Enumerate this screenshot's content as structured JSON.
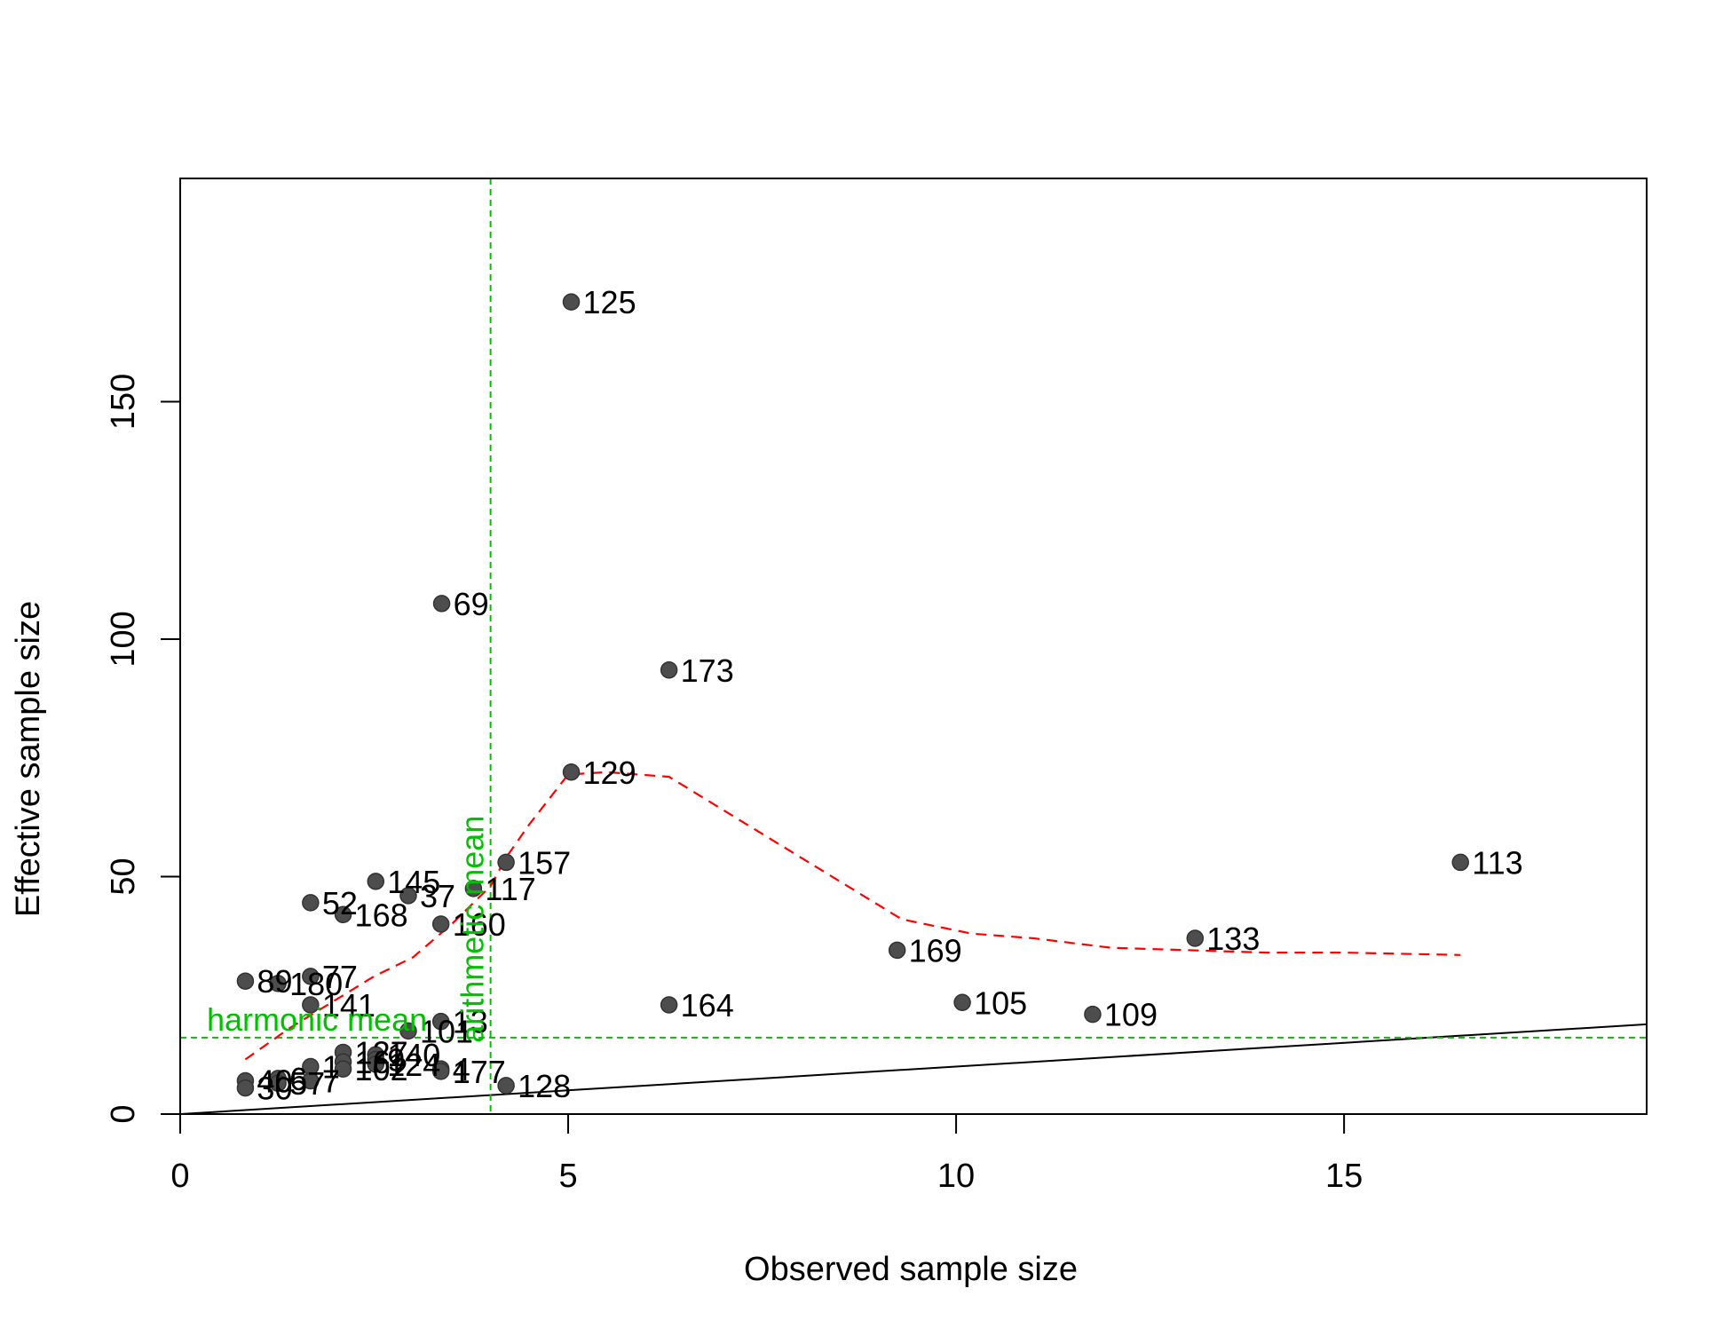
{
  "chart_data": {
    "type": "scatter",
    "xlabel": "Observed sample size",
    "ylabel": "Effective sample size",
    "xlim": [
      0,
      18.9
    ],
    "ylim": [
      0,
      197
    ],
    "x_ticks": [
      0,
      5,
      10,
      15
    ],
    "y_ticks": [
      0,
      50,
      100,
      150
    ],
    "grid": false,
    "colors": {
      "points": "#4d4d4d",
      "labels": "#000000",
      "reference_lines": "#00c000",
      "smooth_line": "#ff0000",
      "identity_line": "#000000",
      "frame": "#000000"
    },
    "reference_lines": {
      "arithmetic_mean": {
        "x": 4.0,
        "label": "arithmetic mean"
      },
      "harmonic_mean": {
        "y": 16.1,
        "label": "harmonic mean"
      }
    },
    "identity_line": {
      "from": [
        0,
        0
      ],
      "to": [
        18.9,
        18.9
      ]
    },
    "smooth_line": [
      [
        0.84,
        11.5
      ],
      [
        1.4,
        18
      ],
      [
        2.0,
        24
      ],
      [
        2.5,
        29
      ],
      [
        3.0,
        33
      ],
      [
        3.5,
        40
      ],
      [
        4.0,
        48
      ],
      [
        4.2,
        54
      ],
      [
        4.5,
        61
      ],
      [
        5.0,
        71.5
      ],
      [
        5.5,
        72
      ],
      [
        6.3,
        71
      ],
      [
        7.0,
        64
      ],
      [
        8.0,
        54
      ],
      [
        9.3,
        41
      ],
      [
        10.2,
        38
      ],
      [
        11.0,
        37
      ],
      [
        12.0,
        35
      ],
      [
        13.0,
        34.5
      ],
      [
        14.0,
        34
      ],
      [
        15.0,
        34
      ],
      [
        16.5,
        33.5
      ]
    ],
    "points": [
      {
        "label": "125",
        "x": 5.04,
        "y": 171.0
      },
      {
        "label": "69",
        "x": 3.37,
        "y": 107.5
      },
      {
        "label": "173",
        "x": 6.3,
        "y": 93.5
      },
      {
        "label": "129",
        "x": 5.04,
        "y": 72.0
      },
      {
        "label": "157",
        "x": 4.2,
        "y": 53.0
      },
      {
        "label": "113",
        "x": 16.5,
        "y": 53.0
      },
      {
        "label": "145",
        "x": 2.52,
        "y": 49.0
      },
      {
        "label": "117",
        "x": 3.78,
        "y": 47.5
      },
      {
        "label": "37",
        "x": 2.94,
        "y": 46.0
      },
      {
        "label": "52",
        "x": 1.68,
        "y": 44.5
      },
      {
        "label": "168",
        "x": 2.1,
        "y": 42.0
      },
      {
        "label": "160",
        "x": 3.36,
        "y": 40.0
      },
      {
        "label": "133",
        "x": 13.08,
        "y": 37.0
      },
      {
        "label": "169",
        "x": 9.24,
        "y": 34.5
      },
      {
        "label": "77",
        "x": 1.68,
        "y": 29.0
      },
      {
        "label": "89",
        "x": 0.84,
        "y": 28.0
      },
      {
        "label": "180",
        "x": 1.26,
        "y": 27.5
      },
      {
        "label": "164",
        "x": 6.3,
        "y": 23.0
      },
      {
        "label": "105",
        "x": 10.08,
        "y": 23.5
      },
      {
        "label": "141",
        "x": 1.68,
        "y": 23.0
      },
      {
        "label": "109",
        "x": 11.76,
        "y": 21.0
      },
      {
        "label": "13",
        "x": 3.36,
        "y": 19.5
      },
      {
        "label": "101",
        "x": 2.94,
        "y": 17.5
      },
      {
        "label": "127",
        "x": 2.1,
        "y": 13.0
      },
      {
        "label": "140",
        "x": 2.52,
        "y": 12.5
      },
      {
        "label": "16",
        "x": 2.1,
        "y": 11.0
      },
      {
        "label": "9",
        "x": 2.52,
        "y": 11.5
      },
      {
        "label": "1",
        "x": 1.68,
        "y": 10.0
      },
      {
        "label": "102",
        "x": 2.1,
        "y": 9.5
      },
      {
        "label": "124",
        "x": 2.52,
        "y": 10.5
      },
      {
        "label": "4",
        "x": 3.36,
        "y": 9.5
      },
      {
        "label": "177",
        "x": 3.36,
        "y": 9.0
      },
      {
        "label": "6",
        "x": 1.26,
        "y": 7.5
      },
      {
        "label": "7",
        "x": 1.68,
        "y": 7.0
      },
      {
        "label": "40",
        "x": 0.84,
        "y": 7.0
      },
      {
        "label": "57",
        "x": 1.26,
        "y": 6.5
      },
      {
        "label": "128",
        "x": 4.2,
        "y": 6.0
      },
      {
        "label": "30",
        "x": 0.84,
        "y": 5.5
      }
    ]
  }
}
